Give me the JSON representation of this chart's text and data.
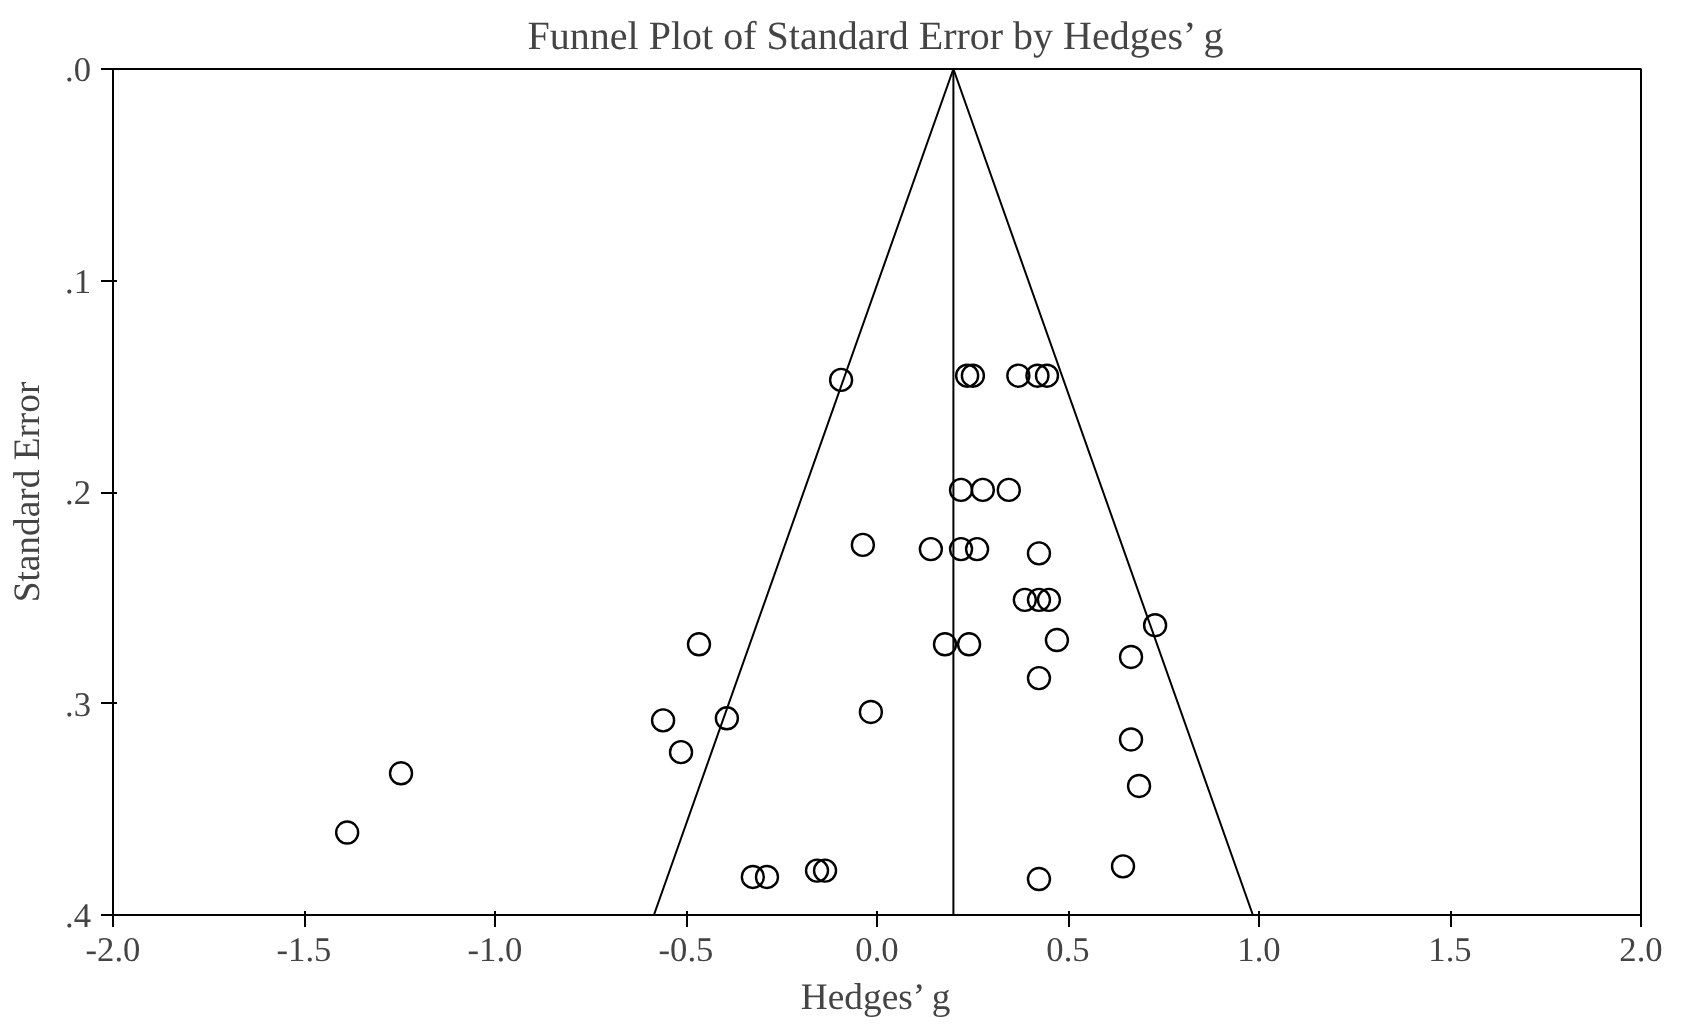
{
  "chart_data": {
    "type": "scatter",
    "title": "Funnel Plot of Standard Error by Hedges’ g",
    "xlabel": "Hedges’ g",
    "ylabel": "Standard Error",
    "xlim": [
      -2.0,
      2.0
    ],
    "xticks": [
      {
        "value": -2,
        "label": "-2.0"
      },
      {
        "value": -1.5,
        "label": "-1.5"
      },
      {
        "value": -1,
        "label": "-1.0"
      },
      {
        "value": -0.5,
        "label": "-0.5"
      },
      {
        "value": 0,
        "label": "0.0"
      },
      {
        "value": 0.5,
        "label": "0.5"
      },
      {
        "value": 1,
        "label": "1.0"
      },
      {
        "value": 1.5,
        "label": "1.5"
      },
      {
        "value": 2,
        "label": "2.0"
      }
    ],
    "ylim": [
      0.4,
      0.0
    ],
    "yticks": [
      {
        "value": 0,
        "label": ".0"
      },
      {
        "value": 0.1,
        "label": ".1"
      },
      {
        "value": 0.2,
        "label": ".2"
      },
      {
        "value": 0.3,
        "label": ".3"
      },
      {
        "value": 0.4,
        "label": ".4"
      }
    ],
    "grid": false,
    "ref_lines": [
      {
        "axis": "x",
        "value": 0.2,
        "label": null,
        "color": "#000000"
      }
    ],
    "series": [
      {
        "color": "#000000",
        "marker": "circle",
        "x": [
          -0.094,
          0.236,
          0.251,
          0.37,
          0.42,
          0.445,
          0.22,
          0.277,
          0.345,
          -0.037,
          0.141,
          0.22,
          0.262,
          0.424,
          0.387,
          0.424,
          0.45,
          0.728,
          0.471,
          0.178,
          0.241,
          -0.466,
          0.665,
          0.424,
          -0.56,
          -0.393,
          -0.513,
          -0.016,
          0.665,
          0.686,
          -1.246,
          -1.387,
          -0.325,
          -0.288,
          -0.157,
          -0.136,
          0.424,
          0.644
        ],
        "values": [
          0.147,
          0.145,
          0.145,
          0.145,
          0.145,
          0.145,
          0.199,
          0.199,
          0.199,
          0.225,
          0.227,
          0.227,
          0.227,
          0.229,
          0.251,
          0.251,
          0.251,
          0.263,
          0.27,
          0.272,
          0.272,
          0.272,
          0.278,
          0.288,
          0.308,
          0.307,
          0.323,
          0.304,
          0.317,
          0.339,
          0.333,
          0.361,
          0.382,
          0.382,
          0.379,
          0.379,
          0.383,
          0.377
        ]
      },
      {
        "type": "line",
        "color": "#000000",
        "marker": "none",
        "x": [
          -0.584,
          0.2,
          0.984
        ],
        "values": [
          0.4,
          0.0,
          0.4
        ]
      }
    ]
  }
}
